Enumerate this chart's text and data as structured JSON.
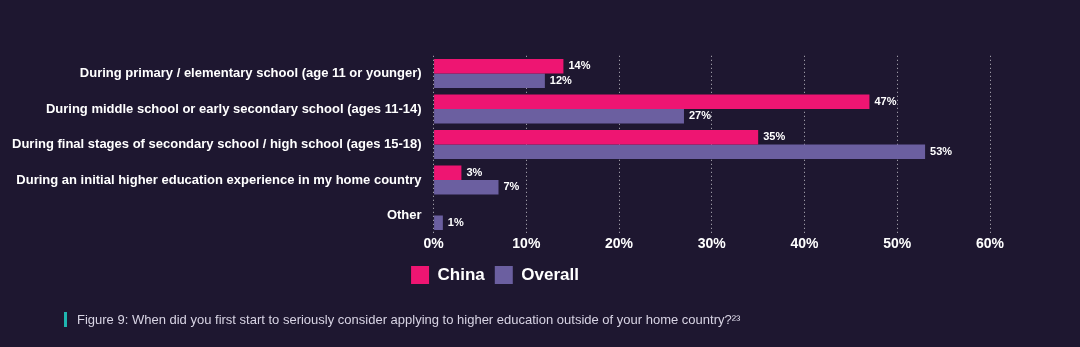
{
  "chart_data": {
    "type": "bar",
    "orientation": "horizontal",
    "categories": [
      "During primary / elementary school (age 11 or younger)",
      "During middle school or early secondary school (ages 11-14)",
      "During final stages of secondary school / high school (ages 15-18)",
      "During an initial higher education experience in my home country",
      "Other"
    ],
    "series": [
      {
        "name": "China",
        "color": "#ee1572",
        "values": [
          14,
          47,
          35,
          3,
          null
        ],
        "value_labels": [
          "14%",
          "47%",
          "35%",
          "3%",
          null
        ]
      },
      {
        "name": "Overall",
        "color": "#6b5fa0",
        "values": [
          12,
          27,
          53,
          7,
          1
        ],
        "value_labels": [
          "12%",
          "27%",
          "53%",
          "7%",
          "1%"
        ]
      }
    ],
    "xlim": [
      0,
      60
    ],
    "xticks": [
      {
        "value": 0,
        "label": "0%"
      },
      {
        "value": 10,
        "label": "10%"
      },
      {
        "value": 20,
        "label": "20%"
      },
      {
        "value": 30,
        "label": "30%"
      },
      {
        "value": 40,
        "label": "40%"
      },
      {
        "value": 50,
        "label": "50%"
      },
      {
        "value": 60,
        "label": "60%"
      }
    ],
    "grid": "x",
    "legend": "bottom",
    "annotations": [
      "Figure 9: When did you first start to seriously consider applying to higher education outside of your home country?²³"
    ]
  }
}
